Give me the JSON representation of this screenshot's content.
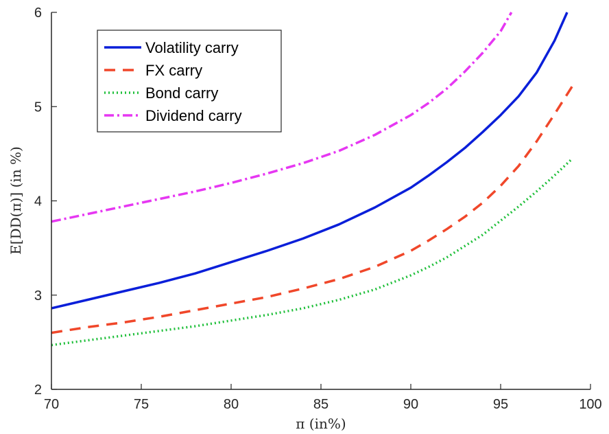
{
  "chart_data": {
    "type": "line",
    "title": "",
    "xlabel": "π (in%)",
    "ylabel": "E[DD(π)] (in %)",
    "xlim": [
      70,
      100
    ],
    "ylim": [
      2,
      6
    ],
    "x_ticks": [
      70,
      75,
      80,
      85,
      90,
      95,
      100
    ],
    "y_ticks": [
      2,
      3,
      4,
      5,
      6
    ],
    "grid": false,
    "legend_position": "top-left",
    "series": [
      {
        "name": "Volatility carry",
        "color": "#0a1fd9",
        "line_style": "solid",
        "x": [
          70,
          72,
          74,
          76,
          78,
          80,
          82,
          84,
          86,
          88,
          90,
          91,
          92,
          93,
          94,
          95,
          96,
          97,
          98,
          98.7
        ],
        "y": [
          2.86,
          2.95,
          3.04,
          3.13,
          3.23,
          3.35,
          3.47,
          3.6,
          3.75,
          3.93,
          4.14,
          4.27,
          4.41,
          4.56,
          4.73,
          4.91,
          5.11,
          5.36,
          5.7,
          6.0
        ]
      },
      {
        "name": "FX carry",
        "color": "#f0472a",
        "line_style": "dashed",
        "x": [
          70,
          72,
          74,
          76,
          78,
          80,
          82,
          84,
          86,
          88,
          90,
          91,
          92,
          93,
          94,
          95,
          96,
          97,
          98,
          99
        ],
        "y": [
          2.6,
          2.66,
          2.71,
          2.77,
          2.84,
          2.91,
          2.98,
          3.07,
          3.17,
          3.3,
          3.47,
          3.58,
          3.7,
          3.83,
          3.98,
          4.16,
          4.37,
          4.63,
          4.92,
          5.22
        ]
      },
      {
        "name": "Bond carry",
        "color": "#1fbf3a",
        "line_style": "dotted",
        "x": [
          70,
          72,
          74,
          76,
          78,
          80,
          82,
          84,
          86,
          88,
          90,
          91,
          92,
          93,
          94,
          95,
          96,
          97,
          98,
          99
        ],
        "y": [
          2.47,
          2.52,
          2.57,
          2.62,
          2.67,
          2.73,
          2.79,
          2.86,
          2.95,
          3.06,
          3.21,
          3.3,
          3.4,
          3.52,
          3.64,
          3.79,
          3.94,
          4.1,
          4.27,
          4.45
        ]
      },
      {
        "name": "Dividend carry",
        "color": "#e637f2",
        "line_style": "dash-dot",
        "x": [
          70,
          72,
          74,
          76,
          78,
          80,
          82,
          84,
          86,
          88,
          90,
          91,
          92,
          93,
          94,
          95,
          95.6
        ],
        "y": [
          3.78,
          3.86,
          3.94,
          4.02,
          4.1,
          4.19,
          4.29,
          4.4,
          4.53,
          4.7,
          4.91,
          5.04,
          5.19,
          5.37,
          5.57,
          5.8,
          6.0
        ]
      }
    ]
  }
}
